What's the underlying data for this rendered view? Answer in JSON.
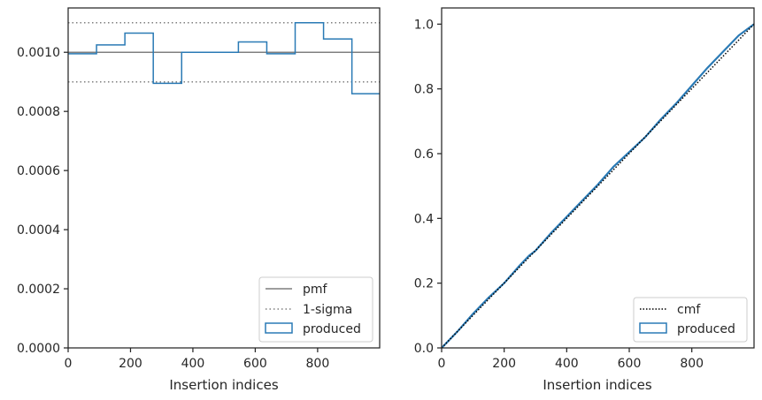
{
  "chart_data": [
    {
      "type": "line",
      "xlabel": "Insertion indices",
      "ylabel": "",
      "xlim": [
        0,
        999
      ],
      "ylim": [
        0,
        0.00115
      ],
      "x_ticks": [
        0,
        200,
        400,
        600,
        800
      ],
      "y_ticks": [
        0.0,
        0.0002,
        0.0004,
        0.0006,
        0.0008,
        0.001
      ],
      "y_tick_labels": [
        "0.0000",
        "0.0002",
        "0.0004",
        "0.0006",
        "0.0008",
        "0.0010"
      ],
      "x_tick_labels": [
        "0",
        "200",
        "400",
        "600",
        "800"
      ],
      "grid": false,
      "legend_position": "lower-right",
      "legend": [
        "pmf",
        "1-sigma",
        "produced"
      ],
      "pmf": 0.001,
      "sigma_upper": 0.0011,
      "sigma_lower": 0.0009,
      "produced": {
        "bin_edges": [
          0,
          91,
          182,
          273,
          364,
          455,
          546,
          637,
          728,
          819,
          910,
          999
        ],
        "values": [
          0.000995,
          0.001025,
          0.001065,
          0.000895,
          0.001,
          0.001,
          0.001035,
          0.000995,
          0.0011,
          0.001045,
          0.00086
        ]
      },
      "colors": {
        "pmf": "#7f7f7f",
        "sigma": "#7f7f7f",
        "produced": "#2a7ab5"
      }
    },
    {
      "type": "line",
      "xlabel": "Insertion indices",
      "ylabel": "",
      "xlim": [
        0,
        999
      ],
      "ylim": [
        0,
        1.05
      ],
      "x_ticks": [
        0,
        200,
        400,
        600,
        800
      ],
      "x_tick_labels": [
        "0",
        "200",
        "400",
        "600",
        "800"
      ],
      "y_ticks": [
        0.0,
        0.2,
        0.4,
        0.6,
        0.8,
        1.0
      ],
      "y_tick_labels": [
        "0.0",
        "0.2",
        "0.4",
        "0.6",
        "0.8",
        "1.0"
      ],
      "grid": false,
      "legend_position": "lower-right",
      "legend": [
        "cmf",
        "produced"
      ],
      "cmf": {
        "x": [
          0,
          999
        ],
        "y": [
          0,
          1.0
        ]
      },
      "produced": {
        "x": [
          0,
          50,
          100,
          150,
          200,
          250,
          280,
          300,
          350,
          400,
          450,
          500,
          550,
          600,
          650,
          700,
          750,
          800,
          850,
          900,
          950,
          999
        ],
        "y": [
          0,
          0.05,
          0.105,
          0.155,
          0.2,
          0.255,
          0.285,
          0.3,
          0.355,
          0.405,
          0.455,
          0.505,
          0.56,
          0.605,
          0.65,
          0.705,
          0.755,
          0.81,
          0.865,
          0.915,
          0.965,
          1.0
        ]
      },
      "colors": {
        "cmf": "#000000",
        "produced": "#2a7ab5"
      }
    }
  ]
}
